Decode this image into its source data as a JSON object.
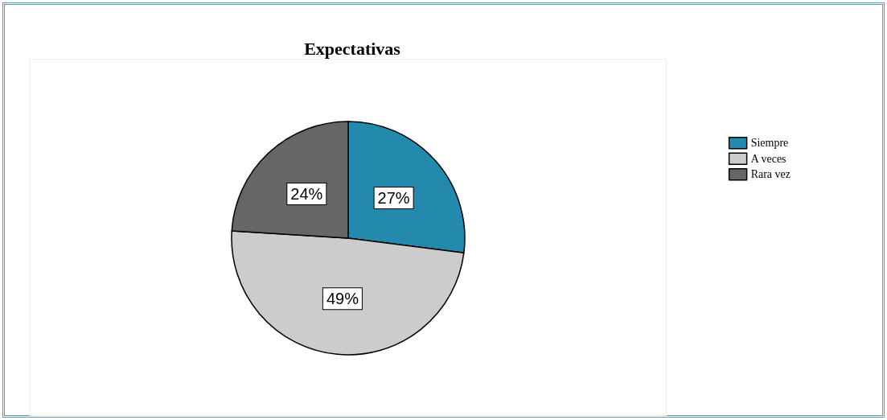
{
  "chart_data": {
    "type": "pie",
    "title": "Expectativas",
    "categories": [
      "Siempre",
      "A veces",
      "Rara vez"
    ],
    "values": [
      27,
      49,
      24
    ],
    "colors": [
      "#238aad",
      "#cccccc",
      "#666666"
    ],
    "value_labels": [
      "27%",
      "49%",
      "24%"
    ],
    "legend": "right"
  }
}
